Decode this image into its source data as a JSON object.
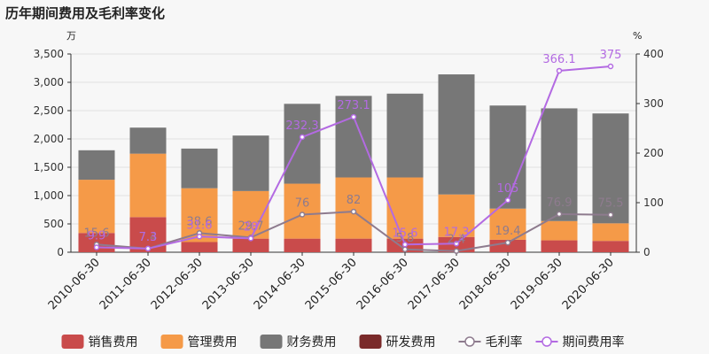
{
  "chart_data": {
    "type": "bar",
    "title": "历年期间费用及毛利率变化",
    "left_unit": "万",
    "right_unit": "%",
    "categories": [
      "2010-06-30",
      "2011-06-30",
      "2012-06-30",
      "2013-06-30",
      "2014-06-30",
      "2015-06-30",
      "2016-06-30",
      "2017-06-30",
      "2018-06-30",
      "2019-06-30",
      "2020-06-30"
    ],
    "ylim": [
      0,
      3500
    ],
    "yticks": [
      "0",
      "500",
      "1,000",
      "1,500",
      "2,000",
      "2,500",
      "3,000",
      "3,500"
    ],
    "y2lim": [
      0,
      400
    ],
    "y2ticks": [
      "0",
      "100",
      "200",
      "300",
      "400"
    ],
    "grid": true,
    "legend_position": "bottom",
    "series": [
      {
        "name": "销售费用",
        "kind": "bar",
        "axis": "left",
        "color": "#c94b4b",
        "values": [
          340,
          620,
          180,
          240,
          240,
          240,
          240,
          270,
          220,
          210,
          200
        ]
      },
      {
        "name": "管理费用",
        "kind": "bar",
        "axis": "left",
        "color": "#f59a48",
        "values": [
          940,
          1120,
          950,
          840,
          970,
          1080,
          1080,
          750,
          550,
          340,
          310
        ]
      },
      {
        "name": "财务费用",
        "kind": "bar",
        "axis": "left",
        "color": "#777777",
        "values": [
          520,
          460,
          700,
          980,
          1410,
          1440,
          1480,
          2120,
          1820,
          1990,
          1940
        ]
      },
      {
        "name": "研发费用",
        "kind": "bar",
        "axis": "left",
        "color": "#7a2a2a",
        "values": [
          0,
          0,
          0,
          0,
          0,
          0,
          0,
          0,
          0,
          0,
          0
        ]
      },
      {
        "name": "毛利率",
        "kind": "line",
        "axis": "right",
        "color": "#8e7b8e",
        "values": [
          15.6,
          7.4,
          38.6,
          29.7,
          76,
          82,
          5.8,
          2.4,
          19.4,
          76.9,
          75.5
        ],
        "labels": [
          "15.6",
          "7.4",
          "38.6",
          "29.7",
          "76",
          "82",
          "5.8",
          "2.4",
          "19.4",
          "76.9",
          "75.5"
        ]
      },
      {
        "name": "期间费用率",
        "kind": "line",
        "axis": "right",
        "color": "#b36ae2",
        "values": [
          9.9,
          7.3,
          31.6,
          28,
          232.3,
          273.1,
          15.6,
          17.3,
          105,
          366.1,
          375
        ],
        "labels": [
          "9.9",
          "7.3",
          "31.6",
          "28",
          "232.3",
          "273.1",
          "15.6",
          "17.3",
          "105",
          "366.1",
          "375"
        ]
      }
    ]
  }
}
